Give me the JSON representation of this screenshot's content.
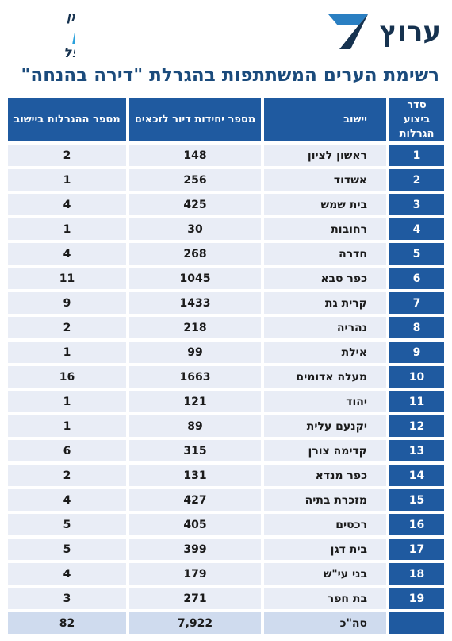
{
  "header": {
    "brand_name": "ערוץ",
    "left_logo_lines": [
      "יומן",
      "נדל\"ן",
      "משפל"
    ],
    "title": "רשימת הערים המשתתפות בהגרלת \"דירה בהנחה\""
  },
  "colors": {
    "brand_navy": "#16324f",
    "brand_blue": "#2a7fc2",
    "header_blue": "#1f5aa0",
    "row_fill": "#e9edf6",
    "title_blue": "#1b4b7c"
  },
  "table": {
    "columns": [
      "סדר ביצוע הגרלות",
      "יישוב",
      "מספר יחידות דיור לזכאים",
      "מספר ההגרלות ביישוב"
    ],
    "rows": [
      {
        "order": "1",
        "city": "ראשון לציון",
        "units": "148",
        "lotteries": "2"
      },
      {
        "order": "2",
        "city": "אשדוד",
        "units": "256",
        "lotteries": "1"
      },
      {
        "order": "3",
        "city": "בית שמש",
        "units": "425",
        "lotteries": "4"
      },
      {
        "order": "4",
        "city": "רחובות",
        "units": "30",
        "lotteries": "1"
      },
      {
        "order": "5",
        "city": "חדרה",
        "units": "268",
        "lotteries": "4"
      },
      {
        "order": "6",
        "city": "כפר סבא",
        "units": "1045",
        "lotteries": "11"
      },
      {
        "order": "7",
        "city": "קרית גת",
        "units": "1433",
        "lotteries": "9"
      },
      {
        "order": "8",
        "city": "נהריה",
        "units": "218",
        "lotteries": "2"
      },
      {
        "order": "9",
        "city": "אילת",
        "units": "99",
        "lotteries": "1"
      },
      {
        "order": "10",
        "city": "מעלה אדומים",
        "units": "1663",
        "lotteries": "16"
      },
      {
        "order": "11",
        "city": "יהוד",
        "units": "121",
        "lotteries": "1"
      },
      {
        "order": "12",
        "city": "יקנעם עלית",
        "units": "89",
        "lotteries": "1"
      },
      {
        "order": "13",
        "city": "קדימה צורן",
        "units": "315",
        "lotteries": "6"
      },
      {
        "order": "14",
        "city": "כפר מנדא",
        "units": "131",
        "lotteries": "2"
      },
      {
        "order": "15",
        "city": "מזכרת בתיה",
        "units": "427",
        "lotteries": "4"
      },
      {
        "order": "16",
        "city": "רכסים",
        "units": "405",
        "lotteries": "5"
      },
      {
        "order": "17",
        "city": "בית דגן",
        "units": "399",
        "lotteries": "5"
      },
      {
        "order": "18",
        "city": "בני עי\"ש",
        "units": "179",
        "lotteries": "4"
      },
      {
        "order": "19",
        "city": "בת חפר",
        "units": "271",
        "lotteries": "3"
      }
    ],
    "total": {
      "order": "",
      "city": "סה\"כ",
      "units": "7,922",
      "lotteries": "82"
    }
  }
}
